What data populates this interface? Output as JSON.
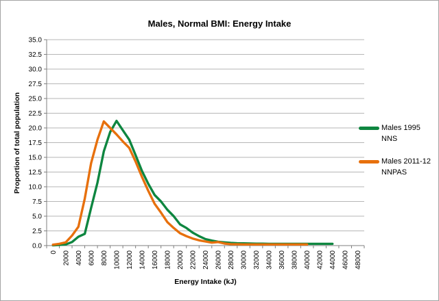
{
  "chart_data": {
    "type": "line",
    "title": "Males, Normal BMI: Energy Intake",
    "xlabel": "Energy Intake (kJ)",
    "ylabel": "Proportion of total population",
    "ylim": [
      0,
      35
    ],
    "ytick_step": 2.5,
    "ytick_labels": [
      "0.0",
      "2.5",
      "5.0",
      "7.5",
      "10.0",
      "12.5",
      "15.0",
      "17.5",
      "20.0",
      "22.5",
      "25.0",
      "27.5",
      "30.0",
      "32.5",
      "35.0"
    ],
    "xtick_labels": [
      "0",
      "2000",
      "4000",
      "6000",
      "8000",
      "10000",
      "12000",
      "14000",
      "16000",
      "18000",
      "20000",
      "22000",
      "24000",
      "26000",
      "28000",
      "30000",
      "32000",
      "34000",
      "36000",
      "38000",
      "40000",
      "42000",
      "44000",
      "46000",
      "48000"
    ],
    "x_step_kj": 1000,
    "grid": true,
    "legend_position": "right",
    "colors": {
      "grid": "#b6b6b6",
      "axis": "#7f7f7f",
      "text": "#000000"
    },
    "series": [
      {
        "name": "Males 1995 NNS",
        "color": "#0e8640",
        "x_start_kj": 0,
        "values": [
          0.05,
          0.1,
          0.2,
          0.6,
          1.5,
          2.0,
          6.4,
          10.7,
          16.0,
          19.3,
          21.2,
          19.6,
          18.0,
          15.4,
          12.7,
          10.5,
          8.6,
          7.5,
          6.1,
          5.0,
          3.6,
          3.0,
          2.2,
          1.6,
          1.1,
          0.85,
          0.65,
          0.55,
          0.45,
          0.4,
          0.38,
          0.35,
          0.33,
          0.32,
          0.3,
          0.3,
          0.3,
          0.3,
          0.3,
          0.3,
          0.3,
          0.3,
          0.3,
          0.3,
          0.3
        ]
      },
      {
        "name": "Males 2011-12 NNPAS",
        "color": "#e7700d",
        "x_start_kj": 0,
        "values": [
          0.15,
          0.3,
          0.55,
          1.7,
          3.2,
          8.0,
          14.0,
          18.0,
          21.1,
          20.0,
          18.9,
          17.7,
          16.6,
          14.3,
          11.7,
          9.3,
          7.1,
          5.6,
          4.0,
          3.0,
          2.1,
          1.6,
          1.2,
          0.9,
          0.7,
          0.5,
          0.6,
          0.35,
          0.25,
          0.22,
          0.2,
          0.2,
          0.2,
          0.2,
          0.2,
          0.2,
          0.2,
          0.2,
          0.2,
          0.2,
          0.2
        ]
      }
    ]
  }
}
